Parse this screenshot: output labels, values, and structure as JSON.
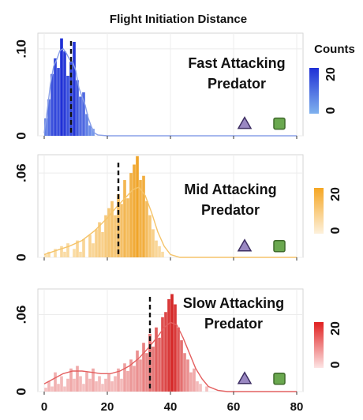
{
  "figure": {
    "title": "Flight Initiation Distance",
    "colorbar_label": "Counts"
  },
  "chart_data": [
    {
      "type": "bar",
      "title": "Fast Attacking\nPredator",
      "x_range": [
        -2,
        82
      ],
      "y_max": 0.118,
      "y_ticks": [
        {
          "value": 0,
          "label": "0"
        },
        {
          "value": 0.1,
          "label": ".10"
        }
      ],
      "x_ticks": [
        0,
        20,
        40,
        60,
        80
      ],
      "show_x_tick_labels": false,
      "mean_line_x": 8.5,
      "triangle_x": 63.5,
      "square_x": 74.5,
      "marker_y": 0.014,
      "colors": {
        "dark": "#1f30d6",
        "light": "#7ea2ec",
        "line": "#8aa0e8"
      },
      "colorbar": {
        "top": "#1f30d6",
        "bottom": "#7fb2ee",
        "ticks": [
          "20",
          "0"
        ]
      },
      "bins": [
        {
          "x": 0.5,
          "y": 0.02,
          "c": 0.3
        },
        {
          "x": 1.5,
          "y": 0.042,
          "c": 0.45
        },
        {
          "x": 2.5,
          "y": 0.071,
          "c": 0.7
        },
        {
          "x": 3.5,
          "y": 0.089,
          "c": 0.8
        },
        {
          "x": 4.5,
          "y": 0.078,
          "c": 0.75
        },
        {
          "x": 5.5,
          "y": 0.112,
          "c": 1.0
        },
        {
          "x": 6.5,
          "y": 0.097,
          "c": 0.9
        },
        {
          "x": 7.5,
          "y": 0.069,
          "c": 0.7
        },
        {
          "x": 8.5,
          "y": 0.085,
          "c": 0.8
        },
        {
          "x": 9.5,
          "y": 0.108,
          "c": 0.95
        },
        {
          "x": 10.5,
          "y": 0.064,
          "c": 0.65
        },
        {
          "x": 11.5,
          "y": 0.045,
          "c": 0.5
        },
        {
          "x": 12.5,
          "y": 0.05,
          "c": 0.5
        },
        {
          "x": 13.5,
          "y": 0.025,
          "c": 0.3
        },
        {
          "x": 14.5,
          "y": 0.012,
          "c": 0.2
        },
        {
          "x": 15.5,
          "y": 0.008,
          "c": 0.1
        }
      ],
      "density": [
        [
          0,
          0.003
        ],
        [
          1,
          0.03
        ],
        [
          2,
          0.06
        ],
        [
          3,
          0.08
        ],
        [
          4,
          0.088
        ],
        [
          5,
          0.098
        ],
        [
          6,
          0.1
        ],
        [
          7,
          0.095
        ],
        [
          8,
          0.088
        ],
        [
          9,
          0.085
        ],
        [
          10,
          0.075
        ],
        [
          11,
          0.055
        ],
        [
          12,
          0.045
        ],
        [
          13,
          0.035
        ],
        [
          14,
          0.02
        ],
        [
          15,
          0.01
        ],
        [
          16,
          0.003
        ],
        [
          17,
          0.001
        ],
        [
          20,
          0.0
        ],
        [
          80,
          0.0
        ]
      ]
    },
    {
      "type": "bar",
      "title": "Mid Attacking\nPredator",
      "x_range": [
        -2,
        82
      ],
      "y_max": 0.073,
      "y_ticks": [
        {
          "value": 0,
          "label": "0"
        },
        {
          "value": 0.06,
          "label": ".06"
        }
      ],
      "x_ticks": [
        0,
        20,
        40,
        60,
        80
      ],
      "show_x_tick_labels": false,
      "mean_line_x": 23.5,
      "triangle_x": 63.5,
      "square_x": 74.5,
      "marker_y": 0.008,
      "colors": {
        "dark": "#f0a52a",
        "light": "#fbe2b4",
        "line": "#f5c46a"
      },
      "colorbar": {
        "top": "#f5a623",
        "bottom": "#fdf1dc",
        "ticks": [
          "20",
          "0"
        ]
      },
      "bins": [
        {
          "x": 0.5,
          "y": 0.002,
          "c": 0.05
        },
        {
          "x": 1.5,
          "y": 0.004,
          "c": 0.1
        },
        {
          "x": 3.5,
          "y": 0.006,
          "c": 0.1
        },
        {
          "x": 5.5,
          "y": 0.008,
          "c": 0.15
        },
        {
          "x": 6.5,
          "y": 0.004,
          "c": 0.1
        },
        {
          "x": 7.5,
          "y": 0.01,
          "c": 0.15
        },
        {
          "x": 9.5,
          "y": 0.006,
          "c": 0.1
        },
        {
          "x": 10.5,
          "y": 0.012,
          "c": 0.2
        },
        {
          "x": 11.5,
          "y": 0.004,
          "c": 0.1
        },
        {
          "x": 12.5,
          "y": 0.013,
          "c": 0.2
        },
        {
          "x": 14.5,
          "y": 0.016,
          "c": 0.25
        },
        {
          "x": 15.5,
          "y": 0.01,
          "c": 0.2
        },
        {
          "x": 16.5,
          "y": 0.02,
          "c": 0.3
        },
        {
          "x": 17.5,
          "y": 0.025,
          "c": 0.35
        },
        {
          "x": 18.5,
          "y": 0.018,
          "c": 0.3
        },
        {
          "x": 19.5,
          "y": 0.03,
          "c": 0.4
        },
        {
          "x": 20.5,
          "y": 0.035,
          "c": 0.45
        },
        {
          "x": 21.5,
          "y": 0.04,
          "c": 0.5
        },
        {
          "x": 22.5,
          "y": 0.03,
          "c": 0.45
        },
        {
          "x": 23.5,
          "y": 0.045,
          "c": 0.6
        },
        {
          "x": 24.5,
          "y": 0.038,
          "c": 0.55
        },
        {
          "x": 25.5,
          "y": 0.055,
          "c": 0.7
        },
        {
          "x": 26.5,
          "y": 0.042,
          "c": 0.6
        },
        {
          "x": 27.5,
          "y": 0.06,
          "c": 0.8
        },
        {
          "x": 28.5,
          "y": 0.066,
          "c": 0.9
        },
        {
          "x": 29.5,
          "y": 0.072,
          "c": 1.0
        },
        {
          "x": 30.5,
          "y": 0.055,
          "c": 0.8
        },
        {
          "x": 31.5,
          "y": 0.058,
          "c": 0.85
        },
        {
          "x": 32.5,
          "y": 0.04,
          "c": 0.6
        },
        {
          "x": 33.5,
          "y": 0.03,
          "c": 0.45
        },
        {
          "x": 34.5,
          "y": 0.02,
          "c": 0.3
        },
        {
          "x": 35.5,
          "y": 0.012,
          "c": 0.2
        },
        {
          "x": 36.5,
          "y": 0.008,
          "c": 0.15
        },
        {
          "x": 37.5,
          "y": 0.004,
          "c": 0.1
        }
      ],
      "density": [
        [
          0,
          0.002
        ],
        [
          4,
          0.005
        ],
        [
          8,
          0.008
        ],
        [
          12,
          0.012
        ],
        [
          16,
          0.019
        ],
        [
          20,
          0.028
        ],
        [
          23,
          0.036
        ],
        [
          26,
          0.043
        ],
        [
          28,
          0.048
        ],
        [
          30,
          0.05
        ],
        [
          32,
          0.044
        ],
        [
          34,
          0.032
        ],
        [
          36,
          0.018
        ],
        [
          38,
          0.008
        ],
        [
          40,
          0.002
        ],
        [
          43,
          0.0
        ],
        [
          80,
          0.0
        ]
      ]
    },
    {
      "type": "bar",
      "title": "Slow Attacking\nPredator",
      "x_range": [
        -2,
        82
      ],
      "y_max": 0.08,
      "y_ticks": [
        {
          "value": 0,
          "label": "0"
        },
        {
          "value": 0.06,
          "label": ".06"
        }
      ],
      "x_ticks": [
        0,
        20,
        40,
        60,
        80
      ],
      "show_x_tick_labels": true,
      "mean_line_x": 33.5,
      "triangle_x": 63.5,
      "square_x": 74.5,
      "marker_y": 0.01,
      "colors": {
        "dark": "#d62828",
        "light": "#f6c9c9",
        "line": "#e46060"
      },
      "colorbar": {
        "top": "#e02020",
        "bottom": "#fde4e4",
        "ticks": [
          "20",
          "0"
        ]
      },
      "bins": [
        {
          "x": 0.5,
          "y": 0.003,
          "c": 0.05
        },
        {
          "x": 1.5,
          "y": 0.008,
          "c": 0.1
        },
        {
          "x": 2.5,
          "y": 0.004,
          "c": 0.05
        },
        {
          "x": 3.5,
          "y": 0.015,
          "c": 0.15
        },
        {
          "x": 4.5,
          "y": 0.006,
          "c": 0.1
        },
        {
          "x": 5.5,
          "y": 0.012,
          "c": 0.1
        },
        {
          "x": 6.5,
          "y": 0.004,
          "c": 0.05
        },
        {
          "x": 7.5,
          "y": 0.01,
          "c": 0.1
        },
        {
          "x": 8.5,
          "y": 0.018,
          "c": 0.2
        },
        {
          "x": 9.5,
          "y": 0.01,
          "c": 0.1
        },
        {
          "x": 10.5,
          "y": 0.02,
          "c": 0.2
        },
        {
          "x": 11.5,
          "y": 0.012,
          "c": 0.1
        },
        {
          "x": 12.5,
          "y": 0.006,
          "c": 0.05
        },
        {
          "x": 13.5,
          "y": 0.015,
          "c": 0.15
        },
        {
          "x": 14.5,
          "y": 0.01,
          "c": 0.1
        },
        {
          "x": 15.5,
          "y": 0.018,
          "c": 0.2
        },
        {
          "x": 16.5,
          "y": 0.008,
          "c": 0.1
        },
        {
          "x": 17.5,
          "y": 0.012,
          "c": 0.1
        },
        {
          "x": 18.5,
          "y": 0.006,
          "c": 0.05
        },
        {
          "x": 19.5,
          "y": 0.01,
          "c": 0.1
        },
        {
          "x": 20.5,
          "y": 0.014,
          "c": 0.15
        },
        {
          "x": 21.5,
          "y": 0.008,
          "c": 0.1
        },
        {
          "x": 22.5,
          "y": 0.012,
          "c": 0.1
        },
        {
          "x": 23.5,
          "y": 0.018,
          "c": 0.2
        },
        {
          "x": 24.5,
          "y": 0.01,
          "c": 0.1
        },
        {
          "x": 25.5,
          "y": 0.022,
          "c": 0.25
        },
        {
          "x": 26.5,
          "y": 0.016,
          "c": 0.2
        },
        {
          "x": 27.5,
          "y": 0.025,
          "c": 0.3
        },
        {
          "x": 28.5,
          "y": 0.02,
          "c": 0.25
        },
        {
          "x": 29.5,
          "y": 0.032,
          "c": 0.35
        },
        {
          "x": 30.5,
          "y": 0.025,
          "c": 0.3
        },
        {
          "x": 31.5,
          "y": 0.038,
          "c": 0.45
        },
        {
          "x": 32.5,
          "y": 0.03,
          "c": 0.4
        },
        {
          "x": 33.5,
          "y": 0.045,
          "c": 0.55
        },
        {
          "x": 34.5,
          "y": 0.035,
          "c": 0.5
        },
        {
          "x": 35.5,
          "y": 0.05,
          "c": 0.65
        },
        {
          "x": 36.5,
          "y": 0.042,
          "c": 0.6
        },
        {
          "x": 37.5,
          "y": 0.058,
          "c": 0.75
        },
        {
          "x": 38.5,
          "y": 0.062,
          "c": 0.8
        },
        {
          "x": 39.5,
          "y": 0.072,
          "c": 0.9
        },
        {
          "x": 40.5,
          "y": 0.076,
          "c": 1.0
        },
        {
          "x": 41.5,
          "y": 0.068,
          "c": 0.9
        },
        {
          "x": 42.5,
          "y": 0.05,
          "c": 0.7
        },
        {
          "x": 43.5,
          "y": 0.04,
          "c": 0.55
        },
        {
          "x": 44.5,
          "y": 0.03,
          "c": 0.4
        },
        {
          "x": 45.5,
          "y": 0.025,
          "c": 0.35
        },
        {
          "x": 46.5,
          "y": 0.015,
          "c": 0.2
        },
        {
          "x": 47.5,
          "y": 0.018,
          "c": 0.2
        },
        {
          "x": 48.5,
          "y": 0.008,
          "c": 0.1
        },
        {
          "x": 49.5,
          "y": 0.006,
          "c": 0.05
        },
        {
          "x": 51.5,
          "y": 0.004,
          "c": 0.05
        }
      ],
      "density": [
        [
          0,
          0.006
        ],
        [
          3,
          0.01
        ],
        [
          6,
          0.014
        ],
        [
          9,
          0.016
        ],
        [
          12,
          0.016
        ],
        [
          15,
          0.015
        ],
        [
          18,
          0.014
        ],
        [
          21,
          0.014
        ],
        [
          24,
          0.016
        ],
        [
          27,
          0.02
        ],
        [
          30,
          0.026
        ],
        [
          33,
          0.034
        ],
        [
          36,
          0.043
        ],
        [
          38,
          0.05
        ],
        [
          40,
          0.054
        ],
        [
          42,
          0.052
        ],
        [
          44,
          0.042
        ],
        [
          46,
          0.03
        ],
        [
          48,
          0.018
        ],
        [
          50,
          0.01
        ],
        [
          52,
          0.004
        ],
        [
          55,
          0.001
        ],
        [
          58,
          0.0
        ],
        [
          80,
          0.0
        ]
      ]
    }
  ]
}
